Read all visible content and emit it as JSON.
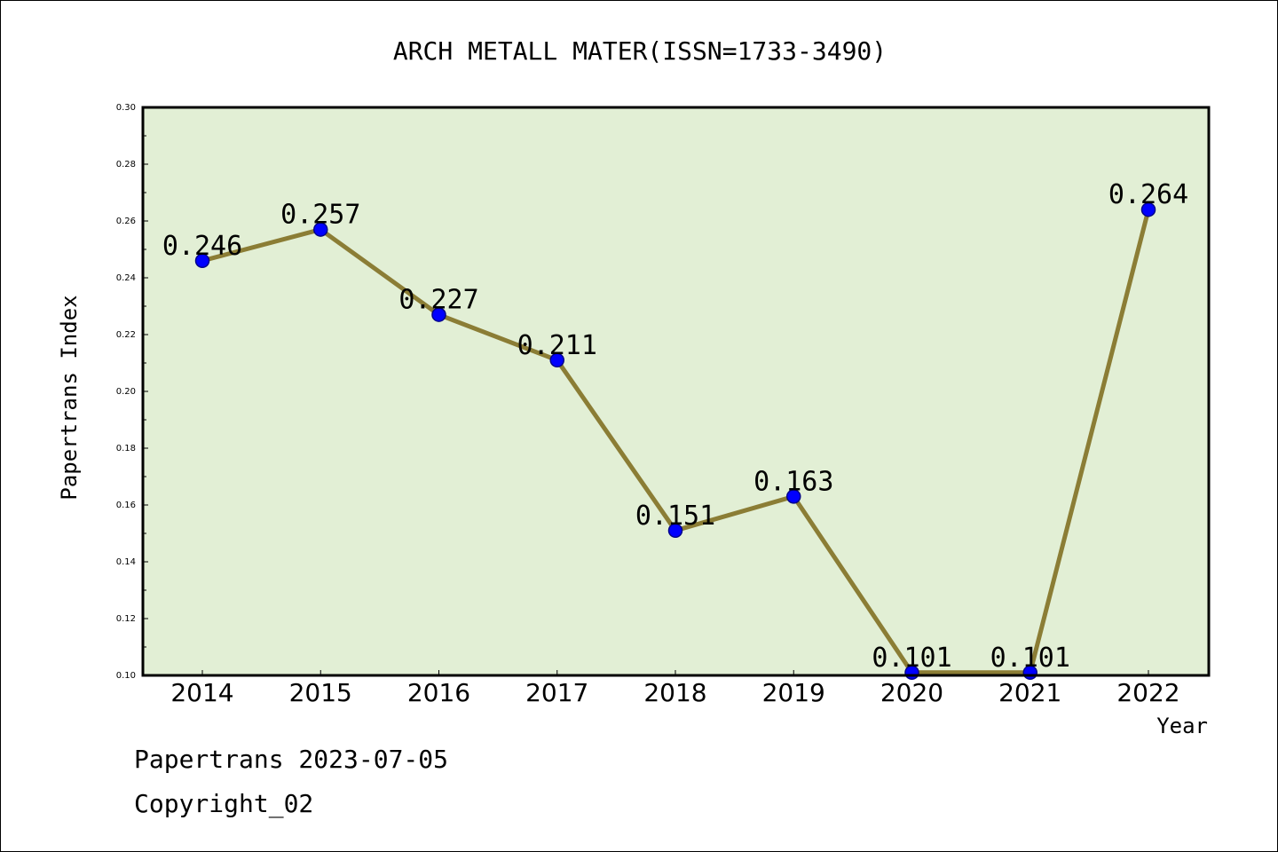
{
  "chart_data": {
    "type": "line",
    "title": "ARCH METALL MATER(ISSN=1733-3490)",
    "xlabel": "Year",
    "ylabel": "Papertrans Index",
    "categories": [
      "2014",
      "2015",
      "2016",
      "2017",
      "2018",
      "2019",
      "2020",
      "2021",
      "2022"
    ],
    "series": [
      {
        "values": [
          0.246,
          0.257,
          0.227,
          0.211,
          0.151,
          0.163,
          0.101,
          0.101,
          0.264
        ],
        "data_labels": [
          "0.246",
          "0.257",
          "0.227",
          "0.211",
          "0.151",
          "0.163",
          "0.101",
          "0.101",
          "0.264"
        ]
      }
    ],
    "ylim": [
      0.1,
      0.3
    ],
    "yticks": [
      "0.10",
      "0.12",
      "0.14",
      "0.16",
      "0.18",
      "0.20",
      "0.22",
      "0.24",
      "0.26",
      "0.28",
      "0.30"
    ],
    "grid": false,
    "colors": {
      "plot_background": "#e2efd5",
      "line": "#8b7d35",
      "marker_fill": "#0000ff",
      "marker_edge": "#00008b"
    }
  },
  "footer": {
    "line1": "Papertrans 2023-07-05",
    "line2": "Copyright_02"
  }
}
